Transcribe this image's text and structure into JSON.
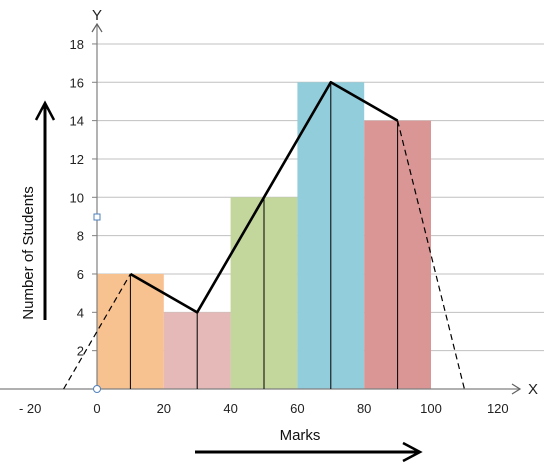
{
  "chart_data": {
    "type": "bar",
    "subtype": "histogram-with-frequency-polygon",
    "categories": [
      "0-20",
      "20-40",
      "40-60",
      "60-80",
      "80-100"
    ],
    "bins": [
      {
        "from": 0,
        "to": 20,
        "value": 6,
        "color": "#f8c190"
      },
      {
        "from": 20,
        "to": 40,
        "value": 4,
        "color": "#e4b9b8"
      },
      {
        "from": 40,
        "to": 60,
        "value": 10,
        "color": "#c3d69b"
      },
      {
        "from": 60,
        "to": 80,
        "value": 16,
        "color": "#92cddc"
      },
      {
        "from": 80,
        "to": 100,
        "value": 14,
        "color": "#d99694"
      }
    ],
    "polygon": {
      "x": [
        -10,
        10,
        30,
        50,
        70,
        90,
        110
      ],
      "y": [
        0,
        6,
        4,
        10,
        16,
        14,
        0
      ]
    },
    "xlabel": "Marks",
    "ylabel": "Number of Students",
    "x_axis_letter": "X",
    "y_axis_letter": "Y",
    "x_ticks": [
      -20,
      0,
      20,
      40,
      60,
      80,
      100,
      120
    ],
    "x_tick_labels": [
      "- 20",
      "0",
      "20",
      "40",
      "60",
      "80",
      "100",
      "120"
    ],
    "y_ticks": [
      2,
      4,
      6,
      8,
      10,
      12,
      14,
      16,
      18
    ],
    "y_tick_labels": [
      "2",
      "4",
      "6",
      "8",
      "10",
      "12",
      "14",
      "16",
      "18"
    ],
    "xlim": [
      -20,
      120
    ],
    "ylim": [
      0,
      18
    ],
    "grid": true,
    "colors": {
      "grid": "#c0c0c0",
      "axis": "#808080",
      "polygon": "#000000"
    }
  }
}
